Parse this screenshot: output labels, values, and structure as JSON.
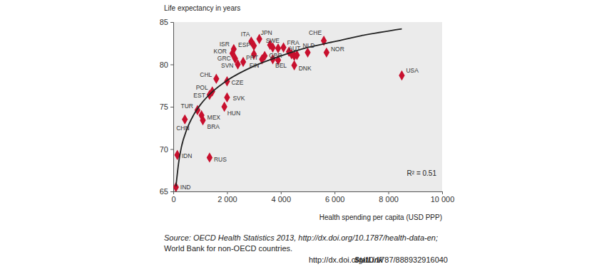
{
  "chart_data": {
    "type": "scatter",
    "y_label": "Life expectancy in years",
    "x_label": "Health spending per capita (USD PPP)",
    "xlim": [
      0,
      10000
    ],
    "ylim": [
      65,
      85
    ],
    "xticks": [
      0,
      {
        "value": 2000,
        "label": "2 000"
      },
      {
        "value": 4000,
        "label": "4 000"
      },
      {
        "value": 6000,
        "label": "6 000"
      },
      {
        "value": 8000,
        "label": "8 000"
      },
      {
        "value": 10000,
        "label": "10 000"
      }
    ],
    "yticks": [
      65,
      70,
      75,
      80,
      85
    ],
    "grid": false,
    "series": [
      {
        "type": "scatter",
        "color": "#c8102e",
        "marker": "diamond",
        "x": [
          100,
          150,
          430,
          900,
          1050,
          1100,
          1350,
          1350,
          1450,
          1600,
          1900,
          2000,
          2000,
          2400,
          2300,
          2200,
          2250,
          2600,
          3000,
          2900,
          3200,
          3000,
          3300,
          3600,
          3700,
          3400,
          3700,
          3900,
          3900,
          4100,
          4300,
          4600,
          4500,
          4400,
          5000,
          4500,
          5600,
          5700,
          8500
        ],
        "values": [
          65.5,
          69.3,
          73.5,
          74.6,
          74.0,
          73.4,
          69.0,
          76.4,
          76.8,
          78.3,
          75.0,
          76.1,
          78.0,
          80.0,
          80.7,
          81.3,
          81.8,
          80.3,
          82.2,
          82.7,
          83.0,
          81.2,
          80.6,
          82.3,
          82.0,
          81.0,
          80.6,
          81.9,
          80.5,
          82.0,
          81.5,
          81.1,
          81.0,
          81.2,
          81.4,
          79.9,
          82.8,
          81.4,
          78.7
        ],
        "labels": [
          "IND",
          "IDN",
          "CHN",
          "TUR",
          "MEX",
          "BRA",
          "RUS",
          "EST",
          "POL",
          "CHL",
          "HUN",
          "SVK",
          "CZE",
          "SVN",
          "GRC",
          "KOR",
          "ISR",
          "PRT",
          "ESP",
          "ITA",
          "JPN",
          null,
          "FIN",
          null,
          null,
          "GBR",
          null,
          "SWE",
          "BEL",
          "FRA",
          null,
          "AUT",
          null,
          null,
          "NLD",
          "DNK",
          "CHE",
          "NOR",
          "USA"
        ]
      },
      {
        "type": "line",
        "color": "#222222",
        "line_style": "solid",
        "x": [
          100,
          200,
          300,
          500,
          750,
          1000,
          1500,
          2000,
          3000,
          4000,
          5000,
          6000,
          7000,
          8500
        ],
        "values": [
          65.6,
          68.4,
          70.2,
          72.3,
          74.0,
          75.2,
          76.9,
          78.1,
          79.8,
          81.0,
          82.0,
          82.7,
          83.4,
          84.2
        ]
      }
    ],
    "annotations": [
      {
        "text": "R² = 0.51"
      }
    ],
    "source": [
      "Source: OECD Health Statistics 2013, http://dx.doi.org/10.1787/health-data-en;",
      "World Bank for non-OECD countries."
    ],
    "statlink": "StatLink",
    "statlink_url": "http://dx.doi.org/10.1787/888932916040"
  }
}
